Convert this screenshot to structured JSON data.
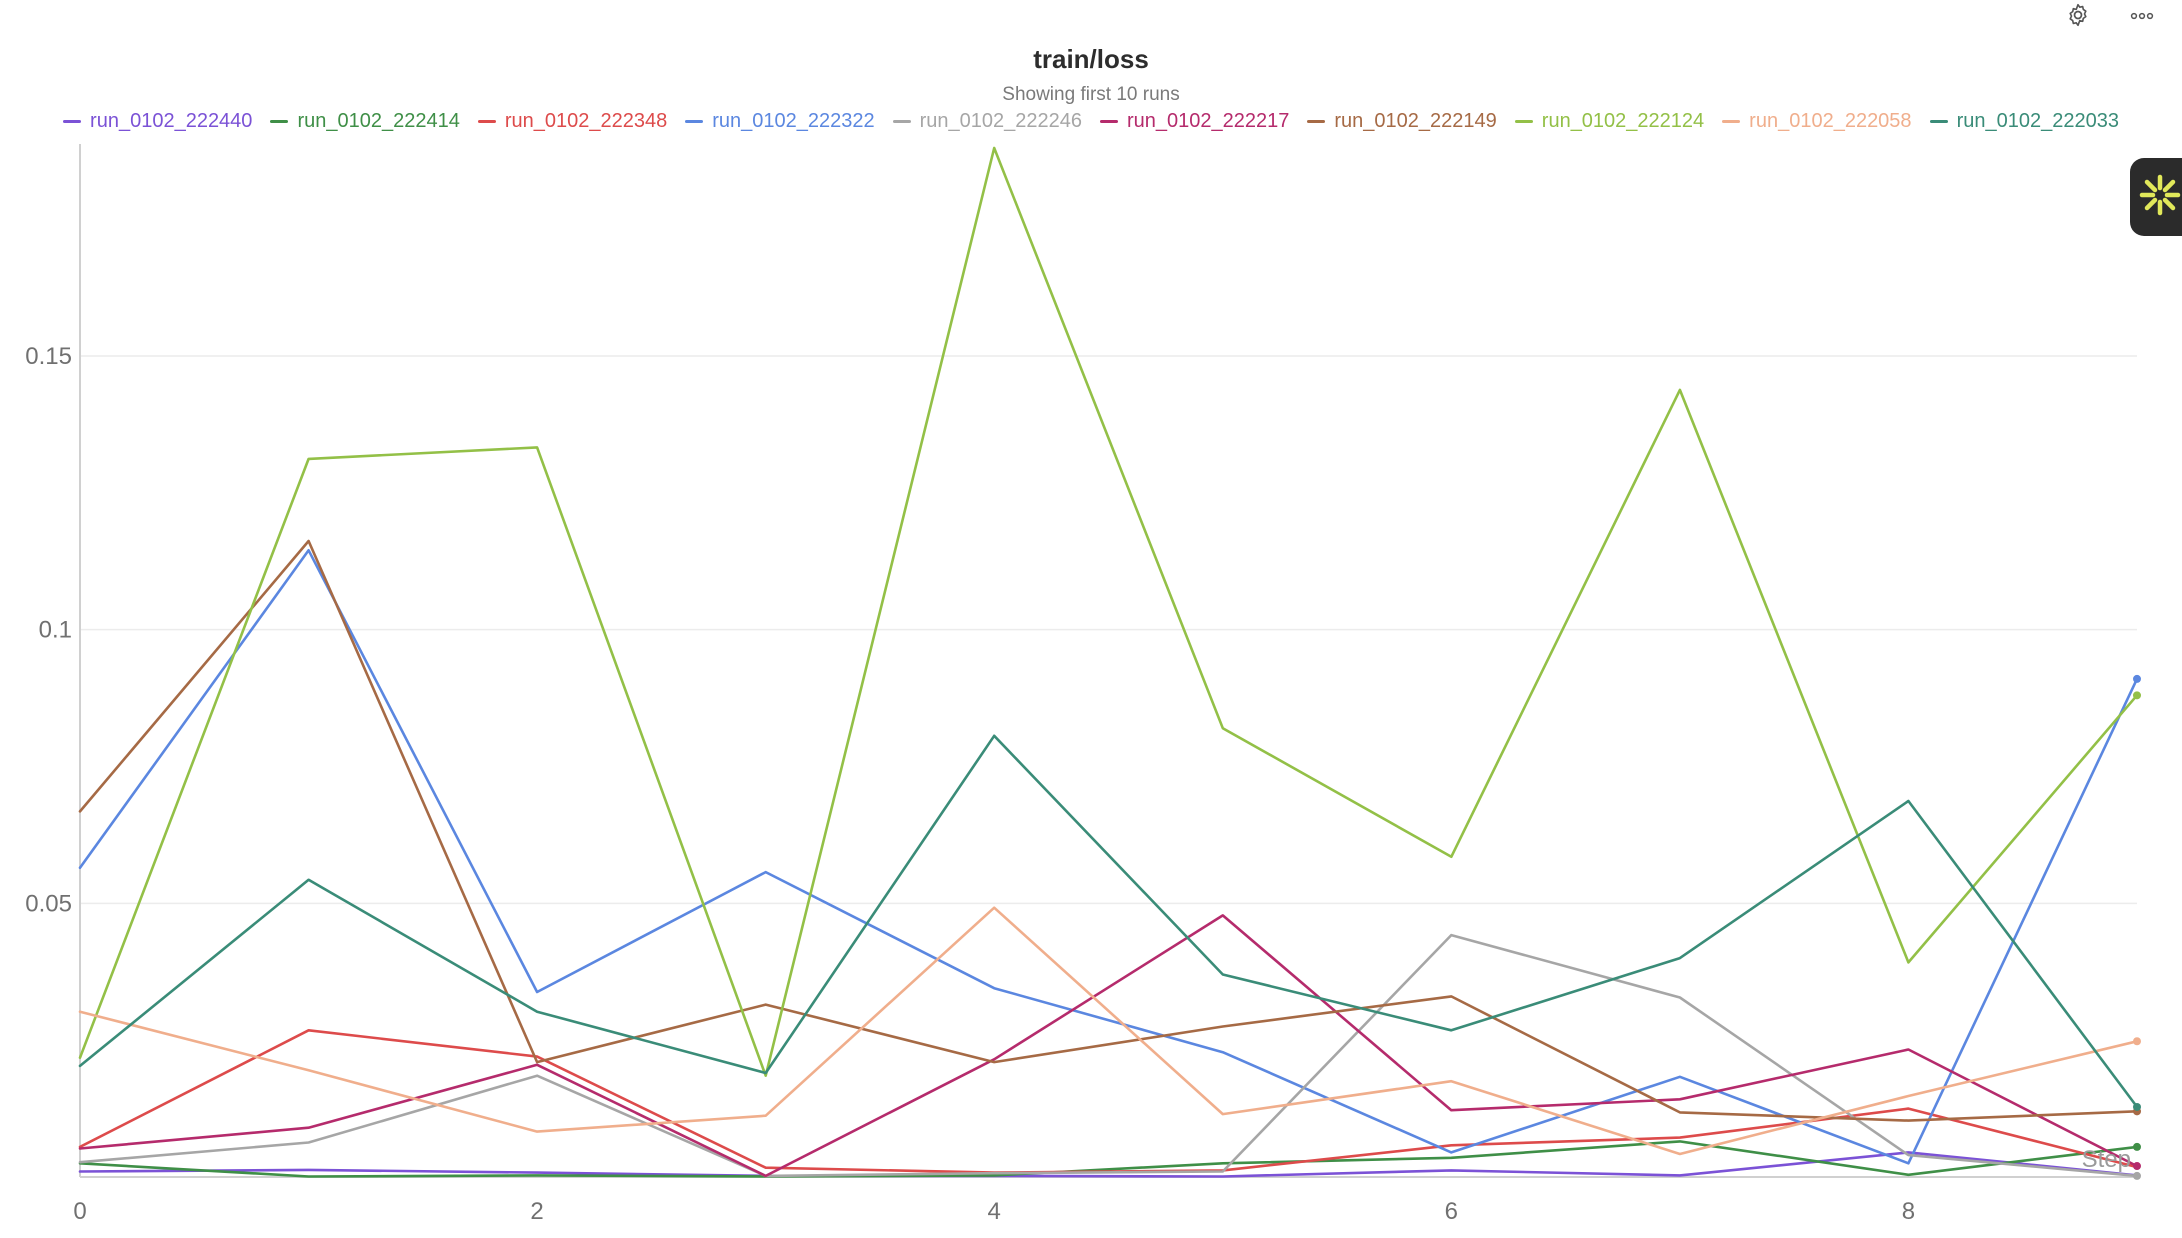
{
  "toolbar": {
    "settings_icon": "gear-icon",
    "more_icon": "more-horizontal-icon"
  },
  "widget": {
    "icon": "asterisk-icon",
    "accent": "#e1e85a",
    "background": "#2b2b2b"
  },
  "chart_data": {
    "type": "line",
    "title": "train/loss",
    "subtitle": "Showing first 10 runs",
    "xlabel": "Step",
    "ylabel": "",
    "x": [
      0,
      1,
      2,
      3,
      4,
      5,
      6,
      7,
      8,
      9
    ],
    "xlim": [
      0,
      9
    ],
    "ylim": [
      0,
      0.188
    ],
    "xticks": [
      0,
      2,
      4,
      6,
      8
    ],
    "xtick_labels": [
      "0",
      "2",
      "4",
      "6",
      "8"
    ],
    "yticks": [
      0.05,
      0.1,
      0.15
    ],
    "ytick_labels": [
      "0.05",
      "0.1",
      "0.15"
    ],
    "grid": true,
    "legend_position": "top-center",
    "series": [
      {
        "name": "run_0102_222440",
        "color": "#7b52d6",
        "values": [
          0.001,
          0.0013,
          0.0008,
          0.0002,
          0.0002,
          0.0001,
          0.0012,
          0.0003,
          0.0045,
          0.0003
        ],
        "end_marker": false
      },
      {
        "name": "run_0102_222414",
        "color": "#3f8f47",
        "values": [
          0.0025,
          0.0001,
          0.0003,
          0.0001,
          0.0003,
          0.0025,
          0.0035,
          0.0065,
          0.0004,
          0.0055
        ],
        "end_marker": true
      },
      {
        "name": "run_0102_222348",
        "color": "#dd4b4b",
        "values": [
          0.0055,
          0.0268,
          0.022,
          0.0017,
          0.0008,
          0.0012,
          0.0058,
          0.0072,
          0.0125,
          0.0018
        ],
        "end_marker": false
      },
      {
        "name": "run_0102_222322",
        "color": "#5b87e0",
        "values": [
          0.0565,
          0.1145,
          0.0338,
          0.0557,
          0.0345,
          0.0228,
          0.0045,
          0.0183,
          0.0025,
          0.091
        ],
        "end_marker": true
      },
      {
        "name": "run_0102_222246",
        "color": "#a6a6a6",
        "values": [
          0.0027,
          0.0063,
          0.0185,
          0.0002,
          0.0007,
          0.001,
          0.0442,
          0.0328,
          0.004,
          0.0002
        ],
        "end_marker": true
      },
      {
        "name": "run_0102_222217",
        "color": "#b52b6c",
        "values": [
          0.0052,
          0.009,
          0.0205,
          0.0002,
          0.0215,
          0.0478,
          0.0122,
          0.0142,
          0.0233,
          0.002
        ],
        "end_marker": true
      },
      {
        "name": "run_0102_222149",
        "color": "#a66a45",
        "values": [
          0.0668,
          0.1162,
          0.021,
          0.0315,
          0.021,
          0.0275,
          0.033,
          0.0118,
          0.0103,
          0.012
        ],
        "end_marker": true
      },
      {
        "name": "run_0102_222124",
        "color": "#93c047",
        "values": [
          0.0218,
          0.1312,
          0.1333,
          0.0185,
          0.188,
          0.082,
          0.0585,
          0.1438,
          0.0392,
          0.088
        ],
        "end_marker": true
      },
      {
        "name": "run_0102_222058",
        "color": "#f0ae8c",
        "values": [
          0.0302,
          0.0195,
          0.0083,
          0.0112,
          0.0492,
          0.0115,
          0.0175,
          0.0042,
          0.0148,
          0.0248
        ],
        "end_marker": true
      },
      {
        "name": "run_0102_222033",
        "color": "#3a8c78",
        "values": [
          0.0203,
          0.0543,
          0.0302,
          0.019,
          0.0806,
          0.037,
          0.0268,
          0.04,
          0.0687,
          0.0128
        ],
        "end_marker": true
      }
    ]
  }
}
